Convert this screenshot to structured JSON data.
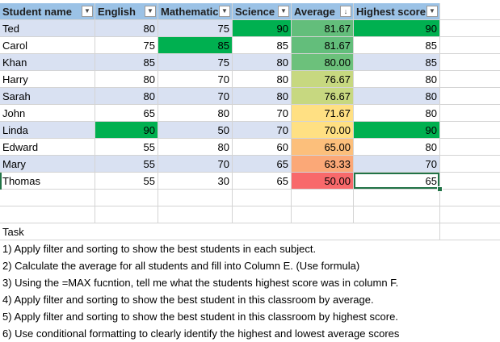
{
  "headers": [
    "Student name",
    "English",
    "Mathematics",
    "Science",
    "Average",
    "Highest score"
  ],
  "header_icons": [
    "filter-dropdown-icon",
    "filter-dropdown-icon",
    "filter-dropdown-icon",
    "filter-dropdown-icon",
    "sort-descending-icon",
    "filter-dropdown-icon"
  ],
  "rows": [
    {
      "name": "Ted",
      "english": "80",
      "math": "75",
      "science": "90",
      "average": "81.67",
      "highest": "90"
    },
    {
      "name": "Carol",
      "english": "75",
      "math": "85",
      "science": "85",
      "average": "81.67",
      "highest": "85"
    },
    {
      "name": "Khan",
      "english": "85",
      "math": "75",
      "science": "80",
      "average": "80.00",
      "highest": "85"
    },
    {
      "name": "Harry",
      "english": "80",
      "math": "70",
      "science": "80",
      "average": "76.67",
      "highest": "80"
    },
    {
      "name": "Sarah",
      "english": "80",
      "math": "70",
      "science": "80",
      "average": "76.67",
      "highest": "80"
    },
    {
      "name": "John",
      "english": "65",
      "math": "80",
      "science": "70",
      "average": "71.67",
      "highest": "80"
    },
    {
      "name": "Linda",
      "english": "90",
      "math": "50",
      "science": "70",
      "average": "70.00",
      "highest": "90"
    },
    {
      "name": "Edward",
      "english": "55",
      "math": "80",
      "science": "60",
      "average": "65.00",
      "highest": "80"
    },
    {
      "name": "Mary",
      "english": "55",
      "math": "70",
      "science": "65",
      "average": "63.33",
      "highest": "70"
    },
    {
      "name": "Thomas",
      "english": "55",
      "math": "30",
      "science": "65",
      "average": "50.00",
      "highest": "65"
    }
  ],
  "task_title": "Task",
  "tasks": [
    "1) Apply filter and sorting to show the best students in each subject.",
    "2) Calculate the average for all students and fill into Column E. (Use formula)",
    "3) Using the =MAX fucntion, tell me what the students highest score was in column F.",
    "4) Apply filter and sorting to show the best student in this classroom by average.",
    "5) Apply filter and sorting to show the best student in this classroom by highest score.",
    "6) Use conditional formatting to clearly identify the highest and lowest average scores"
  ],
  "colors": {
    "header_bg": "#9bc2e6",
    "band_bg": "#d9e1f2",
    "highlight_green": "#00b050",
    "average_scale": [
      "#63be7b",
      "#6cc17b",
      "#85c87d",
      "#c7d880",
      "#ffe083",
      "#fed380",
      "#fcbf7b",
      "#fba877",
      "#f8696b"
    ],
    "selection": "#217346"
  },
  "highlights": {
    "science_max_row": 0,
    "math_max_row": 1,
    "english_max_row": 6,
    "highest_max_rows": [
      0,
      6
    ]
  }
}
